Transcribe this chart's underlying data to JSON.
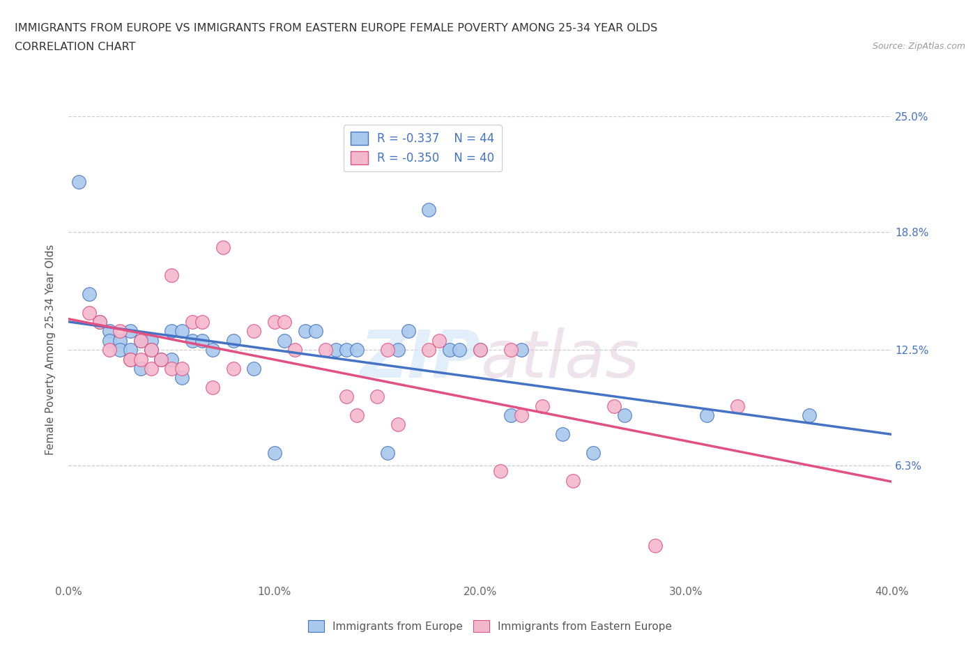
{
  "title_line1": "IMMIGRANTS FROM EUROPE VS IMMIGRANTS FROM EASTERN EUROPE FEMALE POVERTY AMONG 25-34 YEAR OLDS",
  "title_line2": "CORRELATION CHART",
  "source_text": "Source: ZipAtlas.com",
  "ylabel": "Female Poverty Among 25-34 Year Olds",
  "xmin": 0.0,
  "xmax": 0.4,
  "ymin": 0.0,
  "ymax": 0.25,
  "yticks": [
    0.0,
    0.063,
    0.125,
    0.188,
    0.25
  ],
  "ytick_labels_left": [
    "",
    "",
    "",
    "",
    ""
  ],
  "ytick_labels_right": [
    "",
    "6.3%",
    "12.5%",
    "18.8%",
    "25.0%"
  ],
  "xticks": [
    0.0,
    0.1,
    0.2,
    0.3,
    0.4
  ],
  "xtick_labels": [
    "0.0%",
    "10.0%",
    "20.0%",
    "30.0%",
    "40.0%"
  ],
  "legend_r1": "R = -0.337",
  "legend_n1": "N = 44",
  "legend_r2": "R = -0.350",
  "legend_n2": "N = 40",
  "color_blue": "#A8C8EC",
  "color_pink": "#F4B8CC",
  "color_line_blue": "#4472C4",
  "color_line_pink": "#E05080",
  "blue_scatter_x": [
    0.005,
    0.01,
    0.015,
    0.02,
    0.02,
    0.025,
    0.025,
    0.03,
    0.03,
    0.035,
    0.035,
    0.04,
    0.04,
    0.045,
    0.05,
    0.05,
    0.055,
    0.055,
    0.06,
    0.065,
    0.07,
    0.08,
    0.09,
    0.1,
    0.105,
    0.115,
    0.12,
    0.13,
    0.135,
    0.14,
    0.155,
    0.16,
    0.165,
    0.175,
    0.185,
    0.19,
    0.2,
    0.215,
    0.22,
    0.24,
    0.255,
    0.27,
    0.31,
    0.36
  ],
  "blue_scatter_y": [
    0.215,
    0.155,
    0.14,
    0.135,
    0.13,
    0.13,
    0.125,
    0.135,
    0.125,
    0.13,
    0.115,
    0.13,
    0.125,
    0.12,
    0.135,
    0.12,
    0.135,
    0.11,
    0.13,
    0.13,
    0.125,
    0.13,
    0.115,
    0.07,
    0.13,
    0.135,
    0.135,
    0.125,
    0.125,
    0.125,
    0.07,
    0.125,
    0.135,
    0.2,
    0.125,
    0.125,
    0.125,
    0.09,
    0.125,
    0.08,
    0.07,
    0.09,
    0.09,
    0.09
  ],
  "pink_scatter_x": [
    0.01,
    0.015,
    0.02,
    0.025,
    0.03,
    0.03,
    0.035,
    0.035,
    0.04,
    0.04,
    0.045,
    0.05,
    0.05,
    0.055,
    0.06,
    0.065,
    0.07,
    0.075,
    0.08,
    0.09,
    0.1,
    0.105,
    0.11,
    0.125,
    0.135,
    0.14,
    0.15,
    0.155,
    0.16,
    0.175,
    0.18,
    0.2,
    0.21,
    0.215,
    0.22,
    0.23,
    0.245,
    0.265,
    0.285,
    0.325
  ],
  "pink_scatter_y": [
    0.145,
    0.14,
    0.125,
    0.135,
    0.12,
    0.12,
    0.13,
    0.12,
    0.125,
    0.115,
    0.12,
    0.115,
    0.165,
    0.115,
    0.14,
    0.14,
    0.105,
    0.18,
    0.115,
    0.135,
    0.14,
    0.14,
    0.125,
    0.125,
    0.1,
    0.09,
    0.1,
    0.125,
    0.085,
    0.125,
    0.13,
    0.125,
    0.06,
    0.125,
    0.09,
    0.095,
    0.055,
    0.095,
    0.02,
    0.095
  ]
}
